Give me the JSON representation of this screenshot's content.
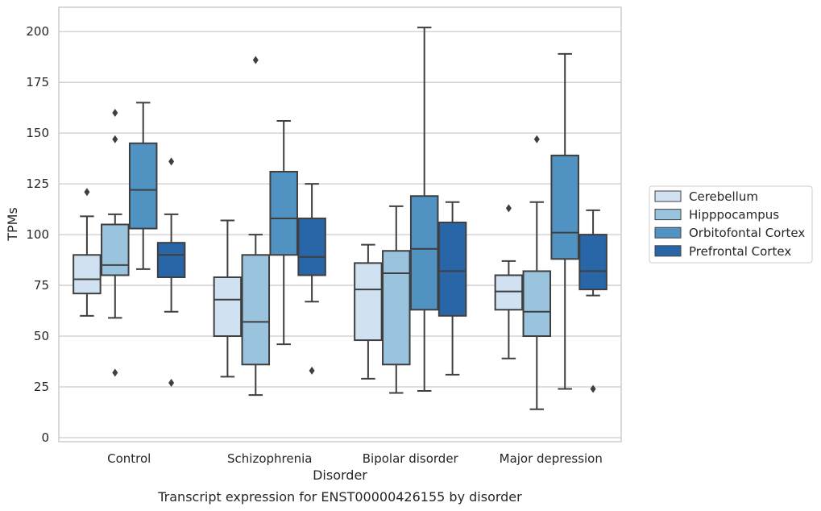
{
  "chart_data": {
    "type": "box",
    "title": "",
    "caption": "Transcript expression for ENST00000426155 by disorder",
    "xlabel": "Disorder",
    "ylabel": "TPMs",
    "ylim": [
      -2,
      212
    ],
    "yticks": [
      0,
      25,
      50,
      75,
      100,
      125,
      150,
      175,
      200
    ],
    "grid": true,
    "legend_position": "right",
    "categories": [
      "Control",
      "Schizophrenia",
      "Bipolar disorder",
      "Major depression"
    ],
    "series": [
      {
        "name": "Cerebellum",
        "color": "#d0e1f2",
        "boxes": [
          {
            "whisker_low": 60,
            "q1": 71,
            "median": 78,
            "q3": 90,
            "whisker_high": 109,
            "outliers": [
              121
            ]
          },
          {
            "whisker_low": 30,
            "q1": 50,
            "median": 68,
            "q3": 79,
            "whisker_high": 107,
            "outliers": []
          },
          {
            "whisker_low": 29,
            "q1": 48,
            "median": 73,
            "q3": 86,
            "whisker_high": 95,
            "outliers": []
          },
          {
            "whisker_low": 39,
            "q1": 63,
            "median": 72,
            "q3": 80,
            "whisker_high": 87,
            "outliers": [
              113
            ]
          }
        ]
      },
      {
        "name": "Hipppocampus",
        "color": "#9ac3dd",
        "boxes": [
          {
            "whisker_low": 59,
            "q1": 80,
            "median": 85,
            "q3": 105,
            "whisker_high": 110,
            "outliers": [
              147,
              160,
              32
            ]
          },
          {
            "whisker_low": 21,
            "q1": 36,
            "median": 57,
            "q3": 90,
            "whisker_high": 100,
            "outliers": [
              186
            ]
          },
          {
            "whisker_low": 22,
            "q1": 36,
            "median": 81,
            "q3": 92,
            "whisker_high": 114,
            "outliers": []
          },
          {
            "whisker_low": 14,
            "q1": 50,
            "median": 62,
            "q3": 82,
            "whisker_high": 116,
            "outliers": [
              147
            ]
          }
        ]
      },
      {
        "name": "Orbitofontal Cortex",
        "color": "#5093c2",
        "boxes": [
          {
            "whisker_low": 83,
            "q1": 103,
            "median": 122,
            "q3": 145,
            "whisker_high": 165,
            "outliers": []
          },
          {
            "whisker_low": 46,
            "q1": 90,
            "median": 108,
            "q3": 131,
            "whisker_high": 156,
            "outliers": []
          },
          {
            "whisker_low": 23,
            "q1": 63,
            "median": 93,
            "q3": 119,
            "whisker_high": 202,
            "outliers": []
          },
          {
            "whisker_low": 24,
            "q1": 88,
            "median": 101,
            "q3": 139,
            "whisker_high": 189,
            "outliers": []
          }
        ]
      },
      {
        "name": "Prefrontal Cortex",
        "color": "#2866a8",
        "boxes": [
          {
            "whisker_low": 62,
            "q1": 79,
            "median": 90,
            "q3": 96,
            "whisker_high": 110,
            "outliers": [
              136,
              27
            ]
          },
          {
            "whisker_low": 67,
            "q1": 80,
            "median": 89,
            "q3": 108,
            "whisker_high": 125,
            "outliers": [
              33
            ]
          },
          {
            "whisker_low": 31,
            "q1": 60,
            "median": 82,
            "q3": 106,
            "whisker_high": 116,
            "outliers": []
          },
          {
            "whisker_low": 70,
            "q1": 73,
            "median": 82,
            "q3": 100,
            "whisker_high": 112,
            "outliers": [
              24
            ]
          }
        ]
      }
    ]
  }
}
